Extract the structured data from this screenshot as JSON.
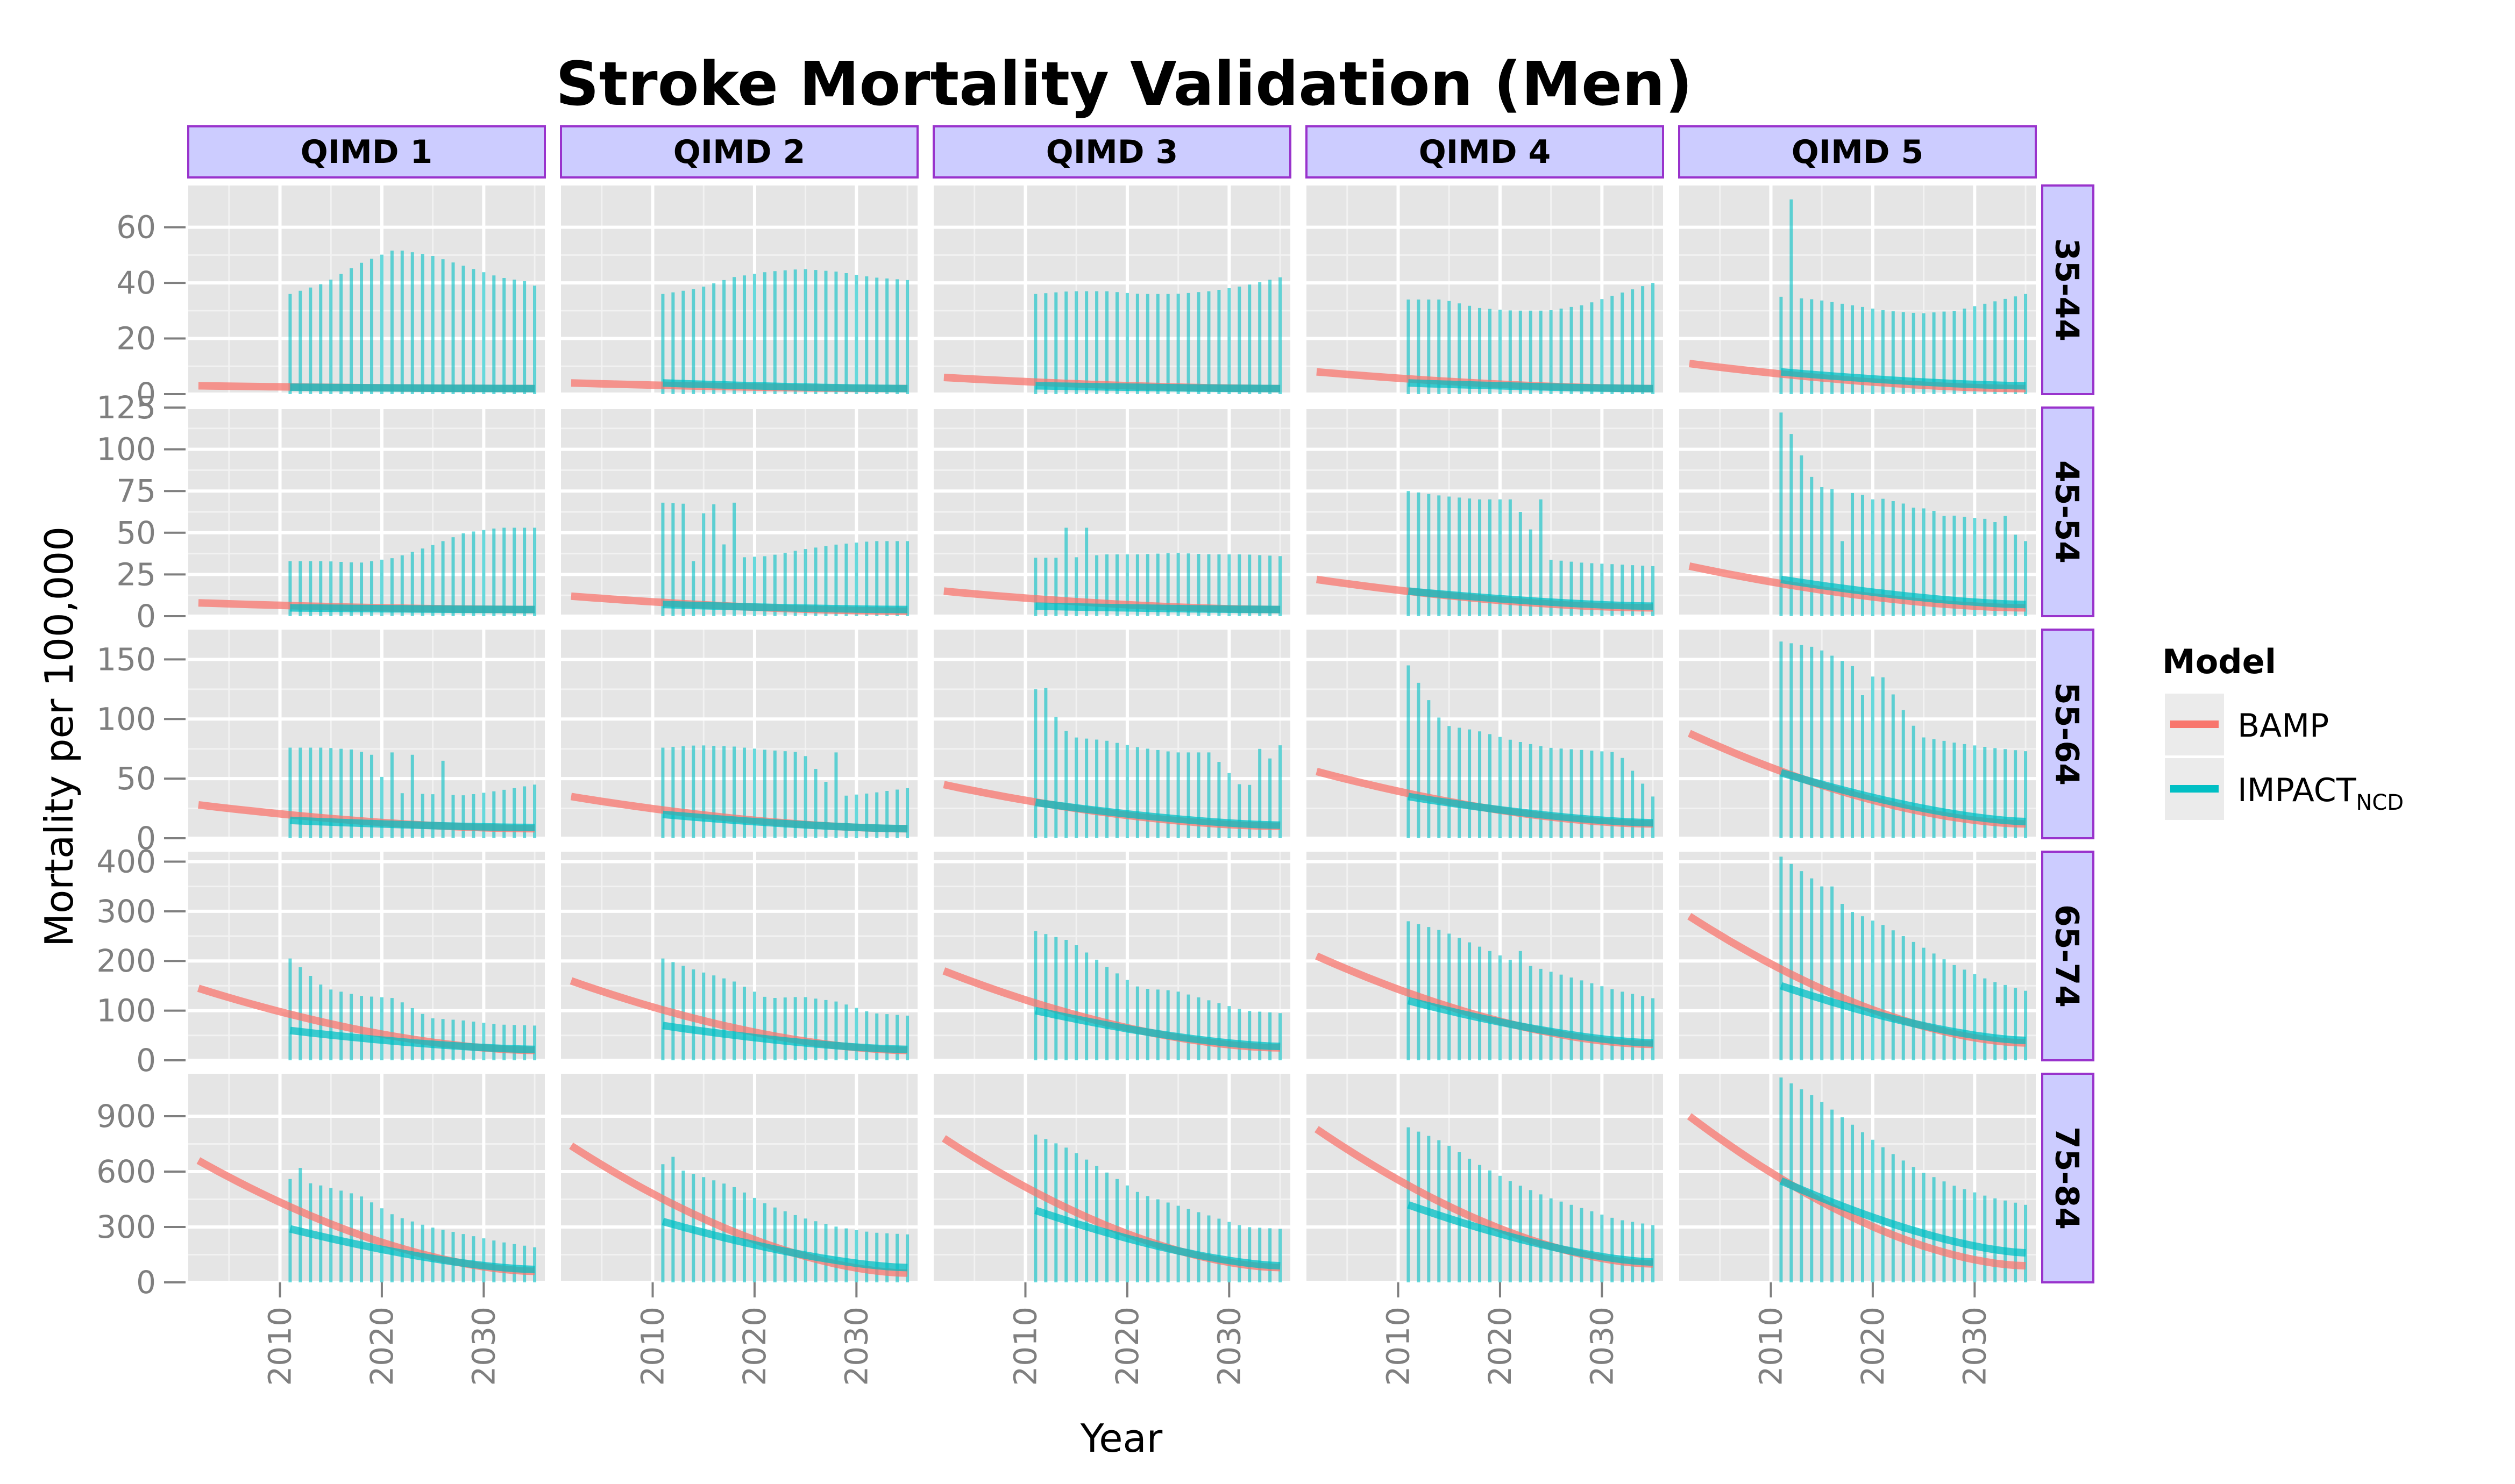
{
  "chart_data": {
    "type": "line",
    "title": "Stroke Mortality Validation (Men)",
    "xlabel": "Year",
    "ylabel": "Mortality per 100,000",
    "x_ticks": [
      2010,
      2020,
      2030
    ],
    "xlim": [
      2001,
      2036
    ],
    "grid": true,
    "legend": {
      "title": "Model",
      "position": "right",
      "entries": [
        {
          "label": "BAMP",
          "color": "#F8766D"
        },
        {
          "label": "IMPACT",
          "subscript": "NCD",
          "color": "#00BFC4"
        }
      ]
    },
    "columns": [
      "QIMD 1",
      "QIMD 2",
      "QIMD 3",
      "QIMD 4",
      "QIMD 5"
    ],
    "rows": [
      {
        "label": "35-44",
        "ylim": [
          0,
          75
        ],
        "ticks": [
          0,
          20,
          40,
          60
        ]
      },
      {
        "label": "45-54",
        "ylim": [
          0,
          125
        ],
        "ticks": [
          0,
          25,
          50,
          75,
          100,
          125
        ]
      },
      {
        "label": "55-64",
        "ylim": [
          0,
          175
        ],
        "ticks": [
          0,
          50,
          100,
          150
        ]
      },
      {
        "label": "65-74",
        "ylim": [
          0,
          420
        ],
        "ticks": [
          0,
          100,
          200,
          300,
          400
        ]
      },
      {
        "label": "75-84",
        "ylim": [
          0,
          1130
        ],
        "ticks": [
          0,
          300,
          600,
          900
        ]
      }
    ],
    "bamp_years": [
      2002,
      2035
    ],
    "impact_years": [
      2011,
      2035
    ],
    "panels": [
      [
        {
          "bamp": [
            3,
            2
          ],
          "impact": [
            2.5,
            2
          ],
          "upper": [
            36,
            40,
            47,
            52,
            50,
            46,
            42,
            40
          ],
          "spikes": [],
          "last_upper": 39
        },
        {
          "bamp": [
            8,
            4
          ],
          "impact": [
            5,
            4
          ],
          "upper": [
            33,
            33,
            32,
            35,
            42,
            50,
            53,
            53
          ],
          "spikes": []
        },
        {
          "bamp": [
            28,
            8
          ],
          "impact": [
            15,
            9
          ],
          "upper": [
            76,
            76,
            74,
            38,
            37,
            36,
            40,
            45
          ],
          "spikes": [
            {
              "y": 2019,
              "v": 70
            },
            {
              "y": 2021,
              "v": 72
            },
            {
              "y": 2023,
              "v": 70
            },
            {
              "y": 2026,
              "v": 65
            }
          ]
        },
        {
          "bamp": [
            145,
            20
          ],
          "impact": [
            60,
            22
          ],
          "upper": [
            205,
            145,
            130,
            125,
            85,
            80,
            72,
            70
          ],
          "spikes": []
        },
        {
          "bamp": [
            660,
            60
          ],
          "impact": [
            290,
            70
          ],
          "upper": [
            560,
            520,
            470,
            360,
            300,
            260,
            220,
            190
          ],
          "spikes": [
            {
              "y": 2012,
              "v": 620
            }
          ]
        }
      ],
      [
        {
          "bamp": [
            4,
            2
          ],
          "impact": [
            4,
            2
          ],
          "upper": [
            36,
            38,
            42,
            44,
            45,
            44,
            42,
            41
          ],
          "spikes": []
        },
        {
          "bamp": [
            12,
            3
          ],
          "impact": [
            7,
            4
          ],
          "upper": [
            68,
            67,
            35,
            36,
            40,
            43,
            45,
            45
          ],
          "spikes": [
            {
              "y": 2014,
              "v": 33
            },
            {
              "y": 2016,
              "v": 67
            },
            {
              "y": 2018,
              "v": 68
            }
          ]
        },
        {
          "bamp": [
            35,
            8
          ],
          "impact": [
            20,
            8
          ],
          "upper": [
            76,
            78,
            77,
            74,
            72,
            35,
            38,
            42
          ],
          "spikes": [
            {
              "y": 2028,
              "v": 72
            }
          ]
        },
        {
          "bamp": [
            160,
            20
          ],
          "impact": [
            70,
            22
          ],
          "upper": [
            205,
            180,
            160,
            125,
            128,
            118,
            95,
            90
          ],
          "spikes": []
        },
        {
          "bamp": [
            740,
            50
          ],
          "impact": [
            330,
            80
          ],
          "upper": [
            640,
            580,
            520,
            420,
            350,
            300,
            270,
            260
          ],
          "spikes": [
            {
              "y": 2012,
              "v": 680
            }
          ]
        }
      ],
      [
        {
          "bamp": [
            6,
            2
          ],
          "impact": [
            3,
            2
          ],
          "upper": [
            36,
            37,
            37,
            36,
            36,
            37,
            39,
            42
          ],
          "spikes": []
        },
        {
          "bamp": [
            15,
            4
          ],
          "impact": [
            6,
            4
          ],
          "upper": [
            35,
            35,
            37,
            37,
            38,
            37,
            37,
            36
          ],
          "spikes": [
            {
              "y": 2014,
              "v": 53
            },
            {
              "y": 2016,
              "v": 53
            }
          ]
        },
        {
          "bamp": [
            45,
            10
          ],
          "impact": [
            30,
            11
          ],
          "upper": [
            125,
            85,
            82,
            76,
            72,
            72,
            40,
            78
          ],
          "spikes": [
            {
              "y": 2012,
              "v": 126
            },
            {
              "y": 2033,
              "v": 75
            }
          ]
        },
        {
          "bamp": [
            180,
            25
          ],
          "impact": [
            100,
            28
          ],
          "upper": [
            260,
            240,
            190,
            145,
            140,
            120,
            100,
            95
          ],
          "spikes": []
        },
        {
          "bamp": [
            780,
            80
          ],
          "impact": [
            390,
            90
          ],
          "upper": [
            800,
            720,
            600,
            480,
            420,
            360,
            300,
            290
          ],
          "spikes": []
        }
      ],
      [
        {
          "bamp": [
            8,
            2
          ],
          "impact": [
            4,
            2
          ],
          "upper": [
            34,
            34,
            31,
            30,
            30,
            32,
            36,
            40
          ],
          "spikes": []
        },
        {
          "bamp": [
            22,
            5
          ],
          "impact": [
            15,
            6
          ],
          "upper": [
            75,
            72,
            70,
            70,
            34,
            32,
            31,
            30
          ],
          "spikes": [
            {
              "y": 2024,
              "v": 70
            }
          ]
        },
        {
          "bamp": [
            56,
            12
          ],
          "impact": [
            35,
            13
          ],
          "upper": [
            145,
            95,
            90,
            82,
            76,
            74,
            72,
            35
          ],
          "spikes": []
        },
        {
          "bamp": [
            210,
            32
          ],
          "impact": [
            120,
            35
          ],
          "upper": [
            280,
            260,
            230,
            200,
            180,
            160,
            140,
            125
          ],
          "spikes": [
            {
              "y": 2022,
              "v": 220
            }
          ]
        },
        {
          "bamp": [
            830,
            100
          ],
          "impact": [
            420,
            110
          ],
          "upper": [
            840,
            760,
            640,
            540,
            460,
            400,
            340,
            310
          ],
          "spikes": []
        }
      ],
      [
        {
          "bamp": [
            11,
            2
          ],
          "impact": [
            8,
            3
          ],
          "upper": [
            35,
            34,
            32,
            30,
            29,
            30,
            33,
            36
          ],
          "spikes": [
            {
              "y": 2012,
              "v": 70
            }
          ]
        },
        {
          "bamp": [
            30,
            5
          ],
          "impact": [
            22,
            7
          ],
          "upper": [
            122,
            78,
            74,
            70,
            65,
            60,
            58,
            45
          ],
          "spikes": [
            {
              "y": 2017,
              "v": 45
            },
            {
              "y": 2020,
              "v": 70
            },
            {
              "y": 2024,
              "v": 65
            },
            {
              "y": 2027,
              "v": 60
            },
            {
              "y": 2033,
              "v": 60
            }
          ]
        },
        {
          "bamp": [
            88,
            12
          ],
          "impact": [
            55,
            14
          ],
          "upper": [
            165,
            160,
            145,
            130,
            85,
            80,
            76,
            73
          ],
          "spikes": [
            {
              "y": 2019,
              "v": 120
            },
            {
              "y": 2021,
              "v": 135
            }
          ]
        },
        {
          "bamp": [
            290,
            35
          ],
          "impact": [
            150,
            40
          ],
          "upper": [
            410,
            360,
            300,
            270,
            230,
            190,
            160,
            140
          ],
          "spikes": [
            {
              "y": 2016,
              "v": 350
            }
          ]
        },
        {
          "bamp": [
            900,
            90
          ],
          "impact": [
            550,
            160
          ],
          "upper": [
            1110,
            1000,
            860,
            720,
            600,
            520,
            460,
            420
          ],
          "spikes": []
        }
      ]
    ]
  }
}
